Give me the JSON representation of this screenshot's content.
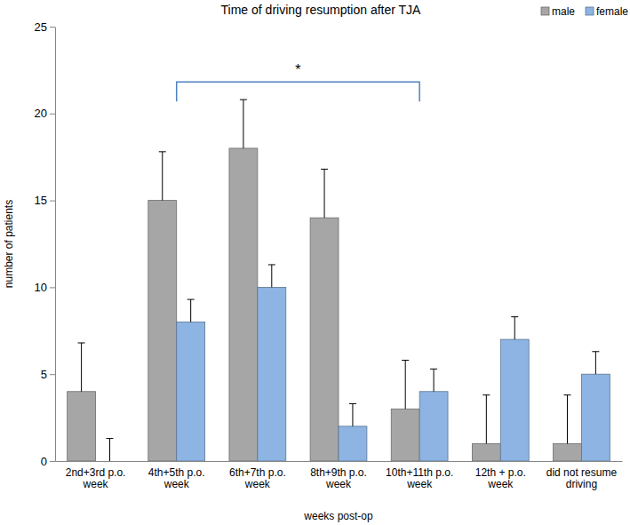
{
  "chart_data": {
    "type": "bar",
    "title": "Time of driving resumption after TJA",
    "x_label": "weeks post-op",
    "y_label": "number of patients",
    "categories": [
      "2nd+3rd p.o. week",
      "4th+5th p.o. week",
      "6th+7th p.o. week",
      "8th+9th p.o. week",
      "10th+11th p.o. week",
      "12th + p.o. week",
      "did not resume driving"
    ],
    "series": [
      {
        "name": "male",
        "color": "#a6a6a6",
        "values": [
          4,
          15,
          18,
          14,
          3,
          1,
          1
        ],
        "errors": [
          2.8,
          2.8,
          2.8,
          2.8,
          2.8,
          2.8,
          2.8
        ]
      },
      {
        "name": "female",
        "color": "#8db4e2",
        "values": [
          0,
          8,
          10,
          2,
          4,
          7,
          5
        ],
        "errors": [
          1.3,
          1.3,
          1.3,
          1.3,
          1.3,
          1.3,
          1.3
        ]
      }
    ],
    "ylim": [
      0,
      25
    ],
    "yticks": [
      0,
      5,
      10,
      15,
      20,
      25
    ],
    "grid": false,
    "legend": "top-right",
    "annotations": [
      {
        "text": "*",
        "start": "4th+5th p.o. week",
        "end": "10th+11th p.o. week"
      }
    ]
  }
}
